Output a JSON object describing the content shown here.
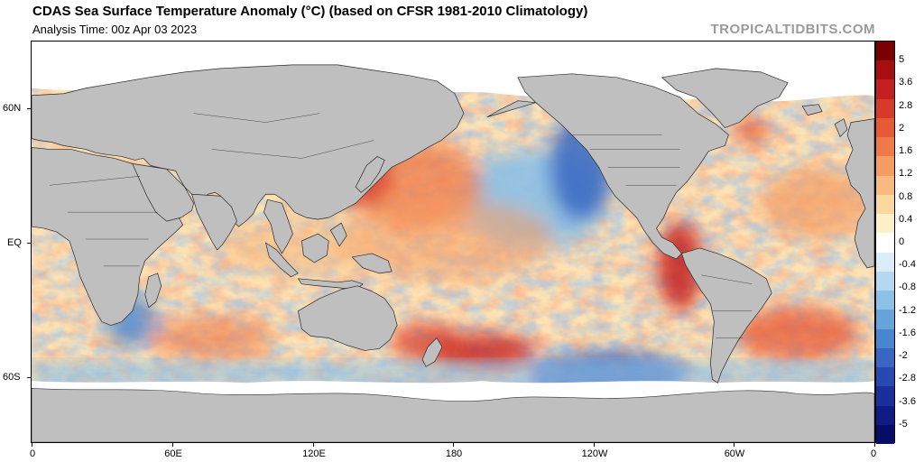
{
  "header": {
    "title": "CDAS Sea Surface Temperature Anomaly (°C) (based on CFSR 1981-2010 Climatology)",
    "analysis_time": "Analysis Time: 00z Apr 03 2023",
    "watermark": "TROPICALTIDBITS.COM"
  },
  "map": {
    "lat_labels": [
      "60N",
      "EQ",
      "60S"
    ],
    "lon_labels": [
      "0",
      "60E",
      "120E",
      "180",
      "120W",
      "60W",
      "0"
    ],
    "land_color": "#bfbfbf",
    "ice_color": "#ffffff"
  },
  "colorbar": {
    "labels": [
      "5",
      "3.6",
      "2.8",
      "2",
      "1.6",
      "1.2",
      "0.8",
      "0.4",
      "0",
      "-0.4",
      "-0.8",
      "-1.2",
      "-1.6",
      "-2",
      "-2.8",
      "-3.6",
      "-5"
    ],
    "colors": [
      "#7a0000",
      "#a50f0f",
      "#c42020",
      "#d83a2a",
      "#e65a36",
      "#ef7a48",
      "#f59c62",
      "#f8ba80",
      "#fbd89e",
      "#fdf0c8",
      "#ffffff",
      "#d9ecf7",
      "#b4d8f0",
      "#8cc0e6",
      "#67a4db",
      "#4a86cf",
      "#3767c2",
      "#2749b1",
      "#19309c",
      "#0e1c84",
      "#070d66"
    ]
  }
}
